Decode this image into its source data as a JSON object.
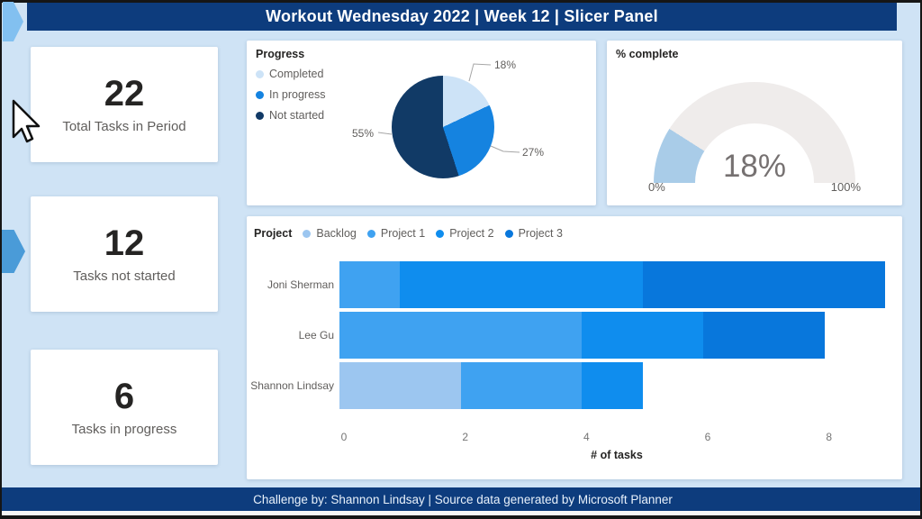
{
  "title_bar": {
    "text": "Workout Wednesday 2022 | Week 12 | Slicer Panel",
    "background": "#0d3c7d"
  },
  "footer": {
    "text": "Challenge by: Shannon Lindsay | Source data generated by Microsoft Planner"
  },
  "kpi_cards": [
    {
      "value": "22",
      "label": "Total Tasks in Period"
    },
    {
      "value": "12",
      "label": "Tasks not started"
    },
    {
      "value": "6",
      "label": "Tasks in progress"
    }
  ],
  "chart_data": [
    {
      "type": "pie",
      "title": "Progress",
      "legend_position": "left",
      "slices": [
        {
          "label": "Completed",
          "pct": 18,
          "pct_label": "18%",
          "color": "#cde3f7"
        },
        {
          "label": "In progress",
          "pct": 27,
          "pct_label": "27%",
          "color": "#1583e0"
        },
        {
          "label": "Not started",
          "pct": 55,
          "pct_label": "55%",
          "color": "#113a66"
        }
      ]
    },
    {
      "type": "gauge",
      "title": "% complete",
      "value_pct": 18,
      "value_label": "18%",
      "min_label": "0%",
      "max_label": "100%",
      "axis_range": [
        0,
        100
      ],
      "fill_color": "#a9cce8",
      "track_color": "#efeceb"
    },
    {
      "type": "bar",
      "orientation": "horizontal-stacked",
      "legend_title": "Project",
      "xlabel": "# of tasks",
      "x_ticks": [
        0,
        2,
        4,
        6,
        8
      ],
      "x_max": 9,
      "series": [
        {
          "name": "Backlog",
          "color": "#9cc6f0"
        },
        {
          "name": "Project 1",
          "color": "#3fa2f1"
        },
        {
          "name": "Project 2",
          "color": "#0f8dee"
        },
        {
          "name": "Project 3",
          "color": "#0877dc"
        }
      ],
      "categories": [
        "Joni Sherman",
        "Lee Gu",
        "Shannon Lindsay"
      ],
      "rows": [
        {
          "category": "Joni Sherman",
          "values": [
            0,
            1,
            4,
            4
          ],
          "total": 9
        },
        {
          "category": "Lee Gu",
          "values": [
            0,
            4,
            2,
            2
          ],
          "total": 8
        },
        {
          "category": "Shannon Lindsay",
          "values": [
            2,
            2,
            1,
            0
          ],
          "total": 5
        }
      ]
    }
  ]
}
